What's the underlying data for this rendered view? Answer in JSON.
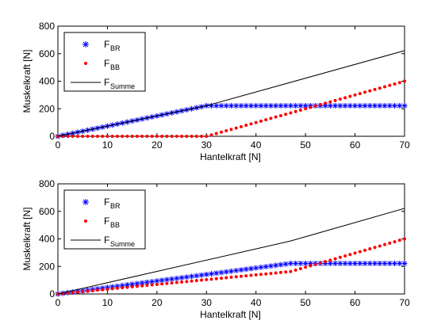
{
  "chart_data": [
    {
      "type": "line",
      "xlabel": "Hantelkraft [N]",
      "ylabel": "Muskelkraft [N]",
      "xlim": [
        0,
        70
      ],
      "ylim": [
        0,
        800
      ],
      "xticks": [
        "0",
        "10",
        "20",
        "30",
        "40",
        "50",
        "60",
        "70"
      ],
      "yticks": [
        "0",
        "200",
        "400",
        "600",
        "800"
      ],
      "grid": false,
      "legend_position": "top-left",
      "series": [
        {
          "name": "F_BR",
          "label": "F",
          "sub": "BR",
          "marker": "asterisk",
          "color": "#0000ff",
          "x": [
            0,
            30,
            70
          ],
          "y": [
            0,
            222,
            222
          ]
        },
        {
          "name": "F_BB",
          "label": "F",
          "sub": "BB",
          "marker": "dot",
          "color": "#ff0000",
          "x": [
            0,
            30,
            70
          ],
          "y": [
            0,
            0,
            400
          ]
        },
        {
          "name": "F_Summe",
          "label": "F",
          "sub": "Summe",
          "marker": "line",
          "color": "#000000",
          "x": [
            0,
            30,
            70
          ],
          "y": [
            0,
            222,
            622
          ]
        }
      ]
    },
    {
      "type": "line",
      "xlabel": "Hantelkraft [N]",
      "ylabel": "Muskelkraft [N]",
      "xlim": [
        0,
        70
      ],
      "ylim": [
        0,
        800
      ],
      "xticks": [
        "0",
        "10",
        "20",
        "30",
        "40",
        "50",
        "60",
        "70"
      ],
      "yticks": [
        "0",
        "200",
        "400",
        "600",
        "800"
      ],
      "grid": false,
      "legend_position": "top-left",
      "series": [
        {
          "name": "F_BR",
          "label": "F",
          "sub": "BR",
          "marker": "asterisk",
          "color": "#0000ff",
          "x": [
            0,
            47,
            70
          ],
          "y": [
            0,
            222,
            222
          ]
        },
        {
          "name": "F_BB",
          "label": "F",
          "sub": "BB",
          "marker": "dot",
          "color": "#ff0000",
          "x": [
            0,
            47,
            70
          ],
          "y": [
            0,
            163,
            400
          ]
        },
        {
          "name": "F_Summe",
          "label": "F",
          "sub": "Summe",
          "marker": "line",
          "color": "#000000",
          "x": [
            0,
            47,
            70
          ],
          "y": [
            0,
            385,
            622
          ]
        }
      ]
    }
  ]
}
